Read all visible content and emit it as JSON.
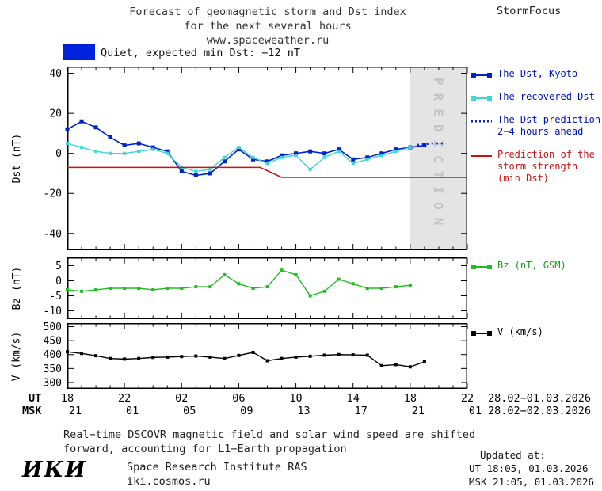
{
  "header": {
    "title_line1": "Forecast of geomagnetic storm and Dst index",
    "title_line2": "for the next several hours",
    "title_line3": "www.spaceweather.ru",
    "brand": "StormFocus"
  },
  "status": {
    "text": "Quiet, expected min Dst: −12 nT",
    "swatch_color": "#0022dd"
  },
  "axis": {
    "ut_label": "UT",
    "msk_label": "MSK",
    "ut_ticks": [
      "18",
      "22",
      "02",
      "06",
      "10",
      "14",
      "18",
      "22"
    ],
    "msk_ticks": [
      "21",
      "01",
      "05",
      "09",
      "13",
      "17",
      "21",
      "01"
    ],
    "ut_daterange": "28.02−01.03.2026",
    "msk_daterange": "28.02−02.03.2026"
  },
  "legends": {
    "main": [
      {
        "label": "The Dst, Kyoto",
        "color": "#0022cc",
        "text_color": "#0011bb",
        "style": "solid-squares"
      },
      {
        "label": "The recovered Dst",
        "color": "#3fd6d6",
        "text_color": "#0011bb",
        "style": "solid-squares"
      },
      {
        "label": "The Dst prediction\n2−4 hours ahead",
        "color": "#0022cc",
        "text_color": "#0011bb",
        "style": "dotted"
      },
      {
        "label": "Prediction of the\nstorm strength\n(min Dst)",
        "color": "#cc1111",
        "text_color": "#cc1111",
        "style": "solid"
      }
    ],
    "bz": [
      {
        "label": "Bz (nT, GSM)",
        "color": "#22bb22",
        "text_color": "#1a9a1a",
        "style": "solid-squares"
      }
    ],
    "v": [
      {
        "label": "V (km/s)",
        "color": "#000000",
        "text_color": "#000000",
        "style": "solid-squares"
      }
    ]
  },
  "note": {
    "line1": "Real−time DSCOVR magnetic field and solar wind speed are shifted",
    "line2": "forward, accounting for L1−Earth propagation"
  },
  "footer": {
    "logo": "ИКИ",
    "institute": "Space Research Institute RAS",
    "site": "iki.cosmos.ru",
    "updated_label": "Updated at:",
    "updated_ut": "UT  18:05, 01.03.2026",
    "updated_msk": "MSK 21:05, 01.03.2026"
  },
  "chart_data": {
    "type": "line",
    "title": "Forecast of geomagnetic storm and Dst index for the next several hours",
    "x_axis": {
      "xlim": [
        0,
        28
      ],
      "tick_hours": [
        0,
        4,
        8,
        12,
        16,
        20,
        24,
        28
      ],
      "minor_step": 1,
      "ut_labels": [
        "18",
        "22",
        "02",
        "06",
        "10",
        "14",
        "18",
        "22"
      ],
      "msk_labels": [
        "21",
        "01",
        "05",
        "09",
        "13",
        "17",
        "21",
        "01"
      ],
      "ut_daterange": "28.02−01.03.2026",
      "msk_daterange": "28.02−02.03.2026"
    },
    "panels": [
      {
        "ylabel": "Dst (nT)",
        "ylim": [
          -48,
          43
        ],
        "yticks": [
          40,
          20,
          0,
          -20,
          -40
        ],
        "grid": false,
        "prediction_band": {
          "x0": 24,
          "x1": 28,
          "label": "PREDICTION"
        },
        "series": [
          {
            "name": "The Dst, Kyoto",
            "color": "#0022cc",
            "width": 1.6,
            "marker": 5,
            "x": [
              0,
              1,
              2,
              3,
              4,
              5,
              6,
              7,
              8,
              9,
              10,
              11,
              12,
              13,
              14,
              15,
              16,
              17,
              18,
              19,
              20,
              21,
              22,
              23,
              24,
              25
            ],
            "y": [
              12,
              16,
              13,
              8,
              4,
              5,
              3,
              1,
              -9,
              -11,
              -10,
              -4,
              2,
              -3,
              -4,
              -1,
              0,
              1,
              0,
              2,
              -3,
              -2,
              0,
              2,
              3,
              4
            ]
          },
          {
            "name": "The recovered Dst",
            "color": "#3fd6d6",
            "width": 1.4,
            "marker": 4,
            "x": [
              0,
              1,
              2,
              3,
              4,
              5,
              6,
              7,
              8,
              9,
              10,
              11,
              12,
              13,
              14,
              15,
              16,
              17,
              18,
              19,
              20,
              21,
              22,
              23,
              24
            ],
            "y": [
              5,
              3,
              1,
              0,
              0,
              1,
              2,
              0,
              -7,
              -9,
              -8,
              -2,
              3,
              -2,
              -5,
              -2,
              -1,
              -8,
              -2,
              1,
              -5,
              -3,
              -1,
              1,
              3
            ]
          },
          {
            "name": "The Dst prediction 2−4 hours ahead",
            "color": "#0022cc",
            "width": 2.6,
            "dash": "2 4",
            "x": [
              24.5,
              25,
              25.5,
              26,
              26.5
            ],
            "y": [
              4.2,
              4.6,
              5,
              5,
              5
            ]
          },
          {
            "name": "Prediction of the storm strength (min Dst)",
            "color": "#cc1111",
            "width": 1.6,
            "x": [
              0,
              13.5,
              15,
              28
            ],
            "y": [
              -7,
              -7,
              -12,
              -12
            ]
          }
        ]
      },
      {
        "ylabel": "Bz (nT)",
        "ylim": [
          -12.5,
          7.5
        ],
        "yticks": [
          5,
          0,
          -5,
          -10
        ],
        "grid": false,
        "series": [
          {
            "name": "Bz (nT, GSM)",
            "color": "#22bb22",
            "width": 1.4,
            "marker": 4,
            "x": [
              0,
              1,
              2,
              3,
              4,
              5,
              6,
              7,
              8,
              9,
              10,
              11,
              12,
              13,
              14,
              15,
              16,
              17,
              18,
              19,
              20,
              21,
              22,
              23,
              24
            ],
            "y": [
              -3,
              -3.5,
              -3,
              -2.5,
              -2.5,
              -2.5,
              -3,
              -2.5,
              -2.5,
              -2,
              -2,
              2,
              -1,
              -2.5,
              -2,
              3.5,
              2,
              -5,
              -3.5,
              0.5,
              -1,
              -2.5,
              -2.5,
              -2,
              -1.5
            ]
          }
        ]
      },
      {
        "ylabel": "V (km/s)",
        "ylim": [
          280,
          510
        ],
        "yticks": [
          500,
          450,
          400,
          350,
          300
        ],
        "grid": false,
        "series": [
          {
            "name": "V (km/s)",
            "color": "#000000",
            "width": 1.4,
            "marker": 4,
            "x": [
              0,
              1,
              2,
              3,
              4,
              5,
              6,
              7,
              8,
              9,
              10,
              11,
              12,
              13,
              14,
              15,
              16,
              17,
              18,
              19,
              20,
              21,
              22,
              23,
              24,
              25
            ],
            "y": [
              410,
              404,
              396,
              386,
              384,
              386,
              390,
              391,
              393,
              395,
              391,
              386,
              397,
              408,
              378,
              386,
              391,
              394,
              398,
              400,
              399,
              398,
              360,
              364,
              356,
              374
            ]
          }
        ]
      }
    ]
  }
}
